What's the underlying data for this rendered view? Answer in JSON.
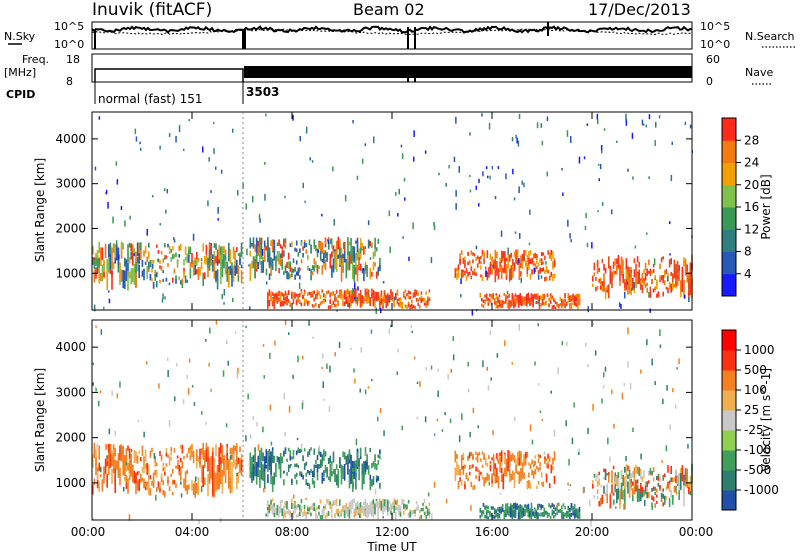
{
  "header": {
    "station": "Inuvik (fitACF)",
    "beam": "Beam 02",
    "date": "17/Dec/2013"
  },
  "strip": {
    "nsky_label": "N.Sky",
    "nsky_ticks": [
      "10^5",
      "10^0"
    ],
    "nsearch_label": "N.Search",
    "nsearch_ticks": [
      "10^5",
      "10^0"
    ],
    "freq_label": "Freq.",
    "freq_unit": "[MHz]",
    "freq_ticks": [
      "18",
      "8"
    ],
    "nave_label": "Nave",
    "nave_ticks": [
      "60",
      "0"
    ],
    "cpid_label": "CPID",
    "cpid_segments": [
      {
        "label": "normal (fast) 151",
        "start_hour": 0,
        "end_hour": 6.1
      },
      {
        "label": "3503",
        "start_hour": 6.1,
        "end_hour": 24
      }
    ]
  },
  "chart_data": [
    {
      "type": "heatmap",
      "name": "power",
      "ylabel": "Slant Range [km]",
      "xlim": [
        0,
        24
      ],
      "ylim": [
        180,
        4600
      ],
      "yticks": [
        "1000",
        "2000",
        "3000",
        "4000"
      ],
      "colorbar": {
        "label": "Power [dB]",
        "ticks": [
          "4",
          "8",
          "12",
          "16",
          "20",
          "24",
          "28"
        ],
        "range": [
          0,
          32
        ],
        "colors": [
          "#1a1aff",
          "#2858b8",
          "#2f7f7f",
          "#3a9a55",
          "#7fc14a",
          "#f2a000",
          "#f57a10",
          "#ff2a1a"
        ]
      },
      "echo_regions": [
        {
          "hour_start": 0.0,
          "hour_end": 6.0,
          "range_low": 600,
          "range_high": 1800,
          "level": "medium"
        },
        {
          "hour_start": 6.3,
          "hour_end": 11.5,
          "range_low": 800,
          "range_high": 1900,
          "level": "medium"
        },
        {
          "hour_start": 7.0,
          "hour_end": 13.5,
          "range_low": 200,
          "range_high": 700,
          "level": "high"
        },
        {
          "hour_start": 14.5,
          "hour_end": 18.5,
          "range_low": 800,
          "range_high": 1600,
          "level": "high"
        },
        {
          "hour_start": 15.5,
          "hour_end": 19.5,
          "range_low": 200,
          "range_high": 600,
          "level": "high"
        },
        {
          "hour_start": 20.0,
          "hour_end": 24.0,
          "range_low": 400,
          "range_high": 1500,
          "level": "high"
        }
      ]
    },
    {
      "type": "heatmap",
      "name": "velocity",
      "ylabel": "Slant Range [km]",
      "xlabel": "Time UT",
      "xlim": [
        0,
        24
      ],
      "ylim": [
        180,
        4600
      ],
      "xticks": [
        "00:00",
        "04:00",
        "08:00",
        "12:00",
        "16:00",
        "20:00",
        "00:00"
      ],
      "yticks": [
        "1000",
        "2000",
        "3000",
        "4000"
      ],
      "colorbar": {
        "label": "Velocity [m s^-1]",
        "ticks": [
          "1000",
          "500",
          "100",
          "25",
          "-25",
          "-100",
          "-500",
          "-1000"
        ],
        "colors": [
          "#2050a8",
          "#2f7f6f",
          "#3f9f5a",
          "#8fd050",
          "#c8c8c8",
          "#f0b050",
          "#f58020",
          "#ff3010",
          "#ff0000"
        ]
      },
      "echo_regions": [
        {
          "hour_start": 0.0,
          "hour_end": 6.0,
          "range_low": 600,
          "range_high": 2000,
          "level": "negative"
        },
        {
          "hour_start": 6.3,
          "hour_end": 11.5,
          "range_low": 800,
          "range_high": 1900,
          "level": "positive"
        },
        {
          "hour_start": 7.0,
          "hour_end": 13.5,
          "range_low": 200,
          "range_high": 700,
          "level": "near-zero"
        },
        {
          "hour_start": 14.5,
          "hour_end": 18.5,
          "range_low": 800,
          "range_high": 1800,
          "level": "negative"
        },
        {
          "hour_start": 15.5,
          "hour_end": 19.5,
          "range_low": 200,
          "range_high": 600,
          "level": "positive"
        },
        {
          "hour_start": 20.0,
          "hour_end": 24.0,
          "range_low": 400,
          "range_high": 1500,
          "level": "mixed"
        }
      ]
    }
  ]
}
